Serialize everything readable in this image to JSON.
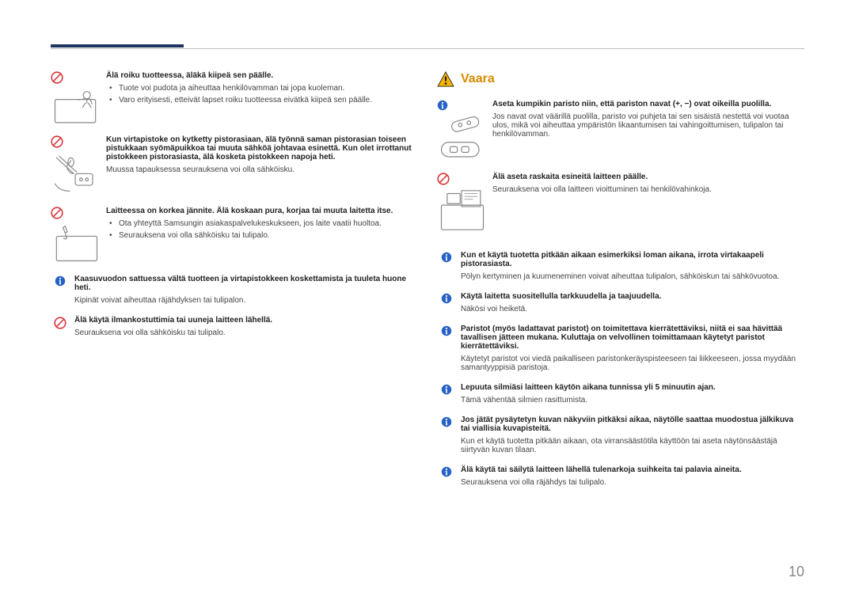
{
  "page_number": "10",
  "colors": {
    "rule": "#20335f",
    "prohibit_red": "#d9363a",
    "info_blue": "#2661c6",
    "warning_yellow": "#f7b500",
    "warning_text": "#d68a00",
    "text": "#333333",
    "body": "#444444",
    "illus_stroke": "#888888"
  },
  "vaara_label": "Vaara",
  "left": [
    {
      "kind": "prohibit-illus",
      "illus": "child-on-tv",
      "bold": "Älä roiku tuotteessa, äläkä kiipeä sen päälle.",
      "bullets": [
        "Tuote voi pudota ja aiheuttaa henkilövamman tai jopa kuoleman.",
        "Varo erityisesti, etteivät lapset roiku tuotteessa eivätkä kiipeä sen päälle."
      ]
    },
    {
      "kind": "prohibit-illus",
      "illus": "plug-chopsticks",
      "bold": "Kun virtapistoke on kytketty pistorasiaan, älä työnnä saman pistorasian toiseen pistukkaan syömäpuikkoa tai muuta sähköä johtavaa esinettä. Kun olet irrottanut pistokkeen pistorasiasta, älä kosketa pistokkeen napoja heti.",
      "body": "Muussa tapauksessa seurauksena voi olla sähköisku."
    },
    {
      "kind": "prohibit-illus",
      "illus": "screwdriver-tv",
      "bold": "Laitteessa on korkea jännite. Älä koskaan pura, korjaa tai muuta laitetta itse.",
      "bullets": [
        "Ota yhteyttä Samsungin asiakaspalvelukeskukseen, jos laite vaatii huoltoa.",
        "Seurauksena voi olla sähköisku tai tulipalo."
      ]
    },
    {
      "kind": "info",
      "bold": "Kaasuvuodon sattuessa vältä tuotteen ja virtapistokkeen koskettamista ja tuuleta huone heti.",
      "body": "Kipinät voivat aiheuttaa räjähdyksen tai tulipalon."
    },
    {
      "kind": "prohibit",
      "bold": "Älä käytä ilmankostuttimia tai uuneja laitteen lähellä.",
      "body": "Seurauksena voi olla sähköisku tai tulipalo."
    }
  ],
  "right_top": [
    {
      "kind": "info-illus",
      "illus": "battery-remote",
      "bold": "Aseta kumpikin paristo niin, että pariston navat (+, −) ovat oikeilla puolilla.",
      "body": "Jos navat ovat väärillä puolilla, paristo voi puhjeta tai sen sisäistä nestettä voi vuotaa ulos, mikä voi aiheuttaa ympäristön likaantumisen tai vahingoittumisen, tulipalon tai henkilövamman."
    },
    {
      "kind": "prohibit-illus",
      "illus": "heavy-on-tv",
      "bold": "Älä aseta raskaita esineitä laitteen päälle.",
      "body": "Seurauksena voi olla laitteen vioittuminen tai henkilövahinkoja."
    }
  ],
  "right_info": [
    {
      "bold": "Kun et käytä tuotetta pitkään aikaan esimerkiksi loman aikana, irrota virtakaapeli pistorasiasta.",
      "body": "Pölyn kertyminen ja kuumeneminen voivat aiheuttaa tulipalon, sähköiskun tai sähkövuotoa."
    },
    {
      "bold": "Käytä laitetta suositellulla tarkkuudella ja taajuudella.",
      "body": "Näkösi voi heiketä."
    },
    {
      "bold": "Paristot (myös ladattavat paristot) on toimitettava kierrätettäviksi, niitä ei saa hävittää tavallisen jätteen mukana. Kuluttaja on velvollinen toimittamaan käytetyt paristot kierrätettäviksi.",
      "body": "Käytetyt paristot voi viedä paikalliseen paristonkeräyspisteeseen tai liikkeeseen, jossa myydään samantyyppisiä paristoja."
    },
    {
      "bold": "Lepuuta silmiäsi laitteen käytön aikana tunnissa yli 5 minuutin ajan.",
      "body": "Tämä vähentää silmien rasittumista."
    },
    {
      "bold": "Jos jätät pysäytetyn kuvan näkyviin pitkäksi aikaa, näytölle saattaa muodostua jälkikuva tai viallisia kuvapisteitä.",
      "body": "Kun et käytä tuotetta pitkään aikaan, ota virransäästötila käyttöön tai aseta näytönsäästäjä siirtyvän kuvan tilaan."
    },
    {
      "bold": "Älä käytä tai säilytä laitteen lähellä tulenarkoja suihkeita tai palavia aineita.",
      "body": "Seurauksena voi olla räjähdys tai tulipalo."
    }
  ]
}
